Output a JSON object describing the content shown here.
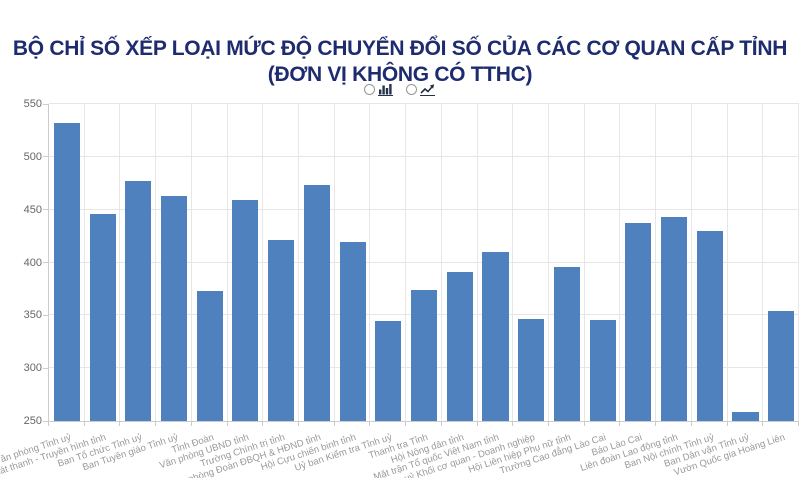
{
  "header": {
    "title_line1": "BỘ CHỈ SỐ XẾP LOẠI MỨC ĐỘ CHUYỂN ĐỔI SỐ CỦA CÁC CƠ QUAN CẤP TỈNH",
    "title_line2": "(ĐƠN VỊ KHÔNG CÓ TTHC)"
  },
  "controls": {
    "chart_type_options": [
      {
        "id": "column",
        "icon": "bar-chart-icon",
        "selected": false
      },
      {
        "id": "line",
        "icon": "line-chart-icon",
        "selected": false
      }
    ]
  },
  "chart_data": {
    "type": "bar",
    "title": "BỘ CHỈ SỐ XẾP LOẠI MỨC ĐỘ CHUYỂN ĐỔI SỐ CỦA CÁC CƠ QUAN CẤP TỈNH (ĐƠN VỊ KHÔNG CÓ TTHC)",
    "categories": [
      "Văn phòng Tỉnh uỷ",
      "Đài Phát thanh - Truyền hình tỉnh",
      "Ban Tổ chức Tỉnh uỷ",
      "Ban Tuyên giáo Tỉnh uỷ",
      "Tỉnh Đoàn",
      "Văn phòng UBND tỉnh",
      "Trường Chính trị tỉnh",
      "Văn phòng Đoàn ĐBQH & HĐND tỉnh",
      "Hội Cựu chiến binh tỉnh",
      "Uỷ ban Kiểm tra Tỉnh uỷ",
      "Thanh tra Tỉnh",
      "Hội Nông dân tỉnh",
      "Mặt trận Tổ quốc Việt Nam tỉnh",
      "Đảng uỷ Khối cơ quan - Doanh nghiệp",
      "Hội Liên hiệp Phụ nữ tỉnh",
      "Trường Cao đẳng Lào Cai",
      "Báo Lào Cai",
      "Liên đoàn Lao động tỉnh",
      "Ban Nội chính Tỉnh uỷ",
      "Ban Dân vận Tỉnh uỷ",
      "Vườn Quốc gia Hoàng Liên"
    ],
    "values": [
      532,
      446,
      477,
      463,
      373,
      459,
      421,
      473,
      419,
      345,
      374,
      391,
      410,
      347,
      396,
      346,
      437,
      443,
      430,
      259,
      354
    ],
    "xlabel": "",
    "ylabel": "",
    "ylim": [
      250,
      550
    ],
    "yticks": [
      250,
      300,
      350,
      400,
      450,
      500,
      550
    ],
    "grid": true,
    "legend": "none",
    "bar_color": "#4e81bd"
  },
  "colors": {
    "title": "#1e2c6f",
    "bar": "#4e81bd",
    "icon": "#26324a",
    "grid": "#e6e6e6",
    "axis": "#cccccc",
    "y_label": "#666666",
    "x_label": "#999999"
  }
}
